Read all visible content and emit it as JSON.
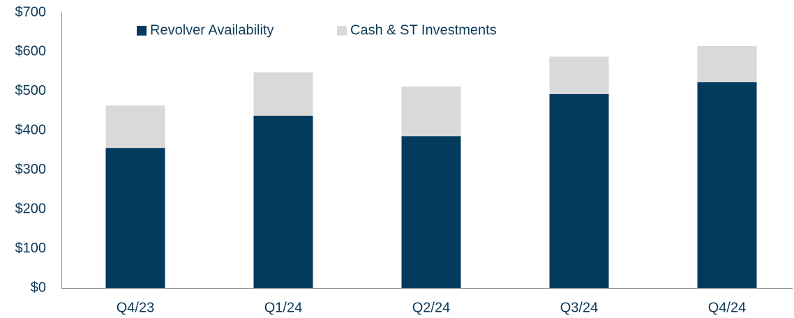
{
  "chart_data": {
    "type": "stacked_bar",
    "categories": [
      "Q4/23",
      "Q1/24",
      "Q2/24",
      "Q3/24",
      "Q4/24"
    ],
    "series": [
      {
        "name": "Revolver Availability",
        "color": "#003a5c",
        "values": [
          356,
          438,
          386,
          493,
          523
        ]
      },
      {
        "name": "Cash & ST Investments",
        "color": "#d9d9d9",
        "values": [
          108,
          110,
          126,
          95,
          92
        ]
      }
    ],
    "ylim": [
      0,
      700
    ],
    "yticks": [
      {
        "value": 0,
        "label": "$0"
      },
      {
        "value": 100,
        "label": "$100"
      },
      {
        "value": 200,
        "label": "$200"
      },
      {
        "value": 300,
        "label": "$300"
      },
      {
        "value": 400,
        "label": "$400"
      },
      {
        "value": 500,
        "label": "$500"
      },
      {
        "value": 600,
        "label": "$600"
      },
      {
        "value": 700,
        "label": "$700"
      }
    ],
    "grid": false,
    "legend": "top"
  }
}
